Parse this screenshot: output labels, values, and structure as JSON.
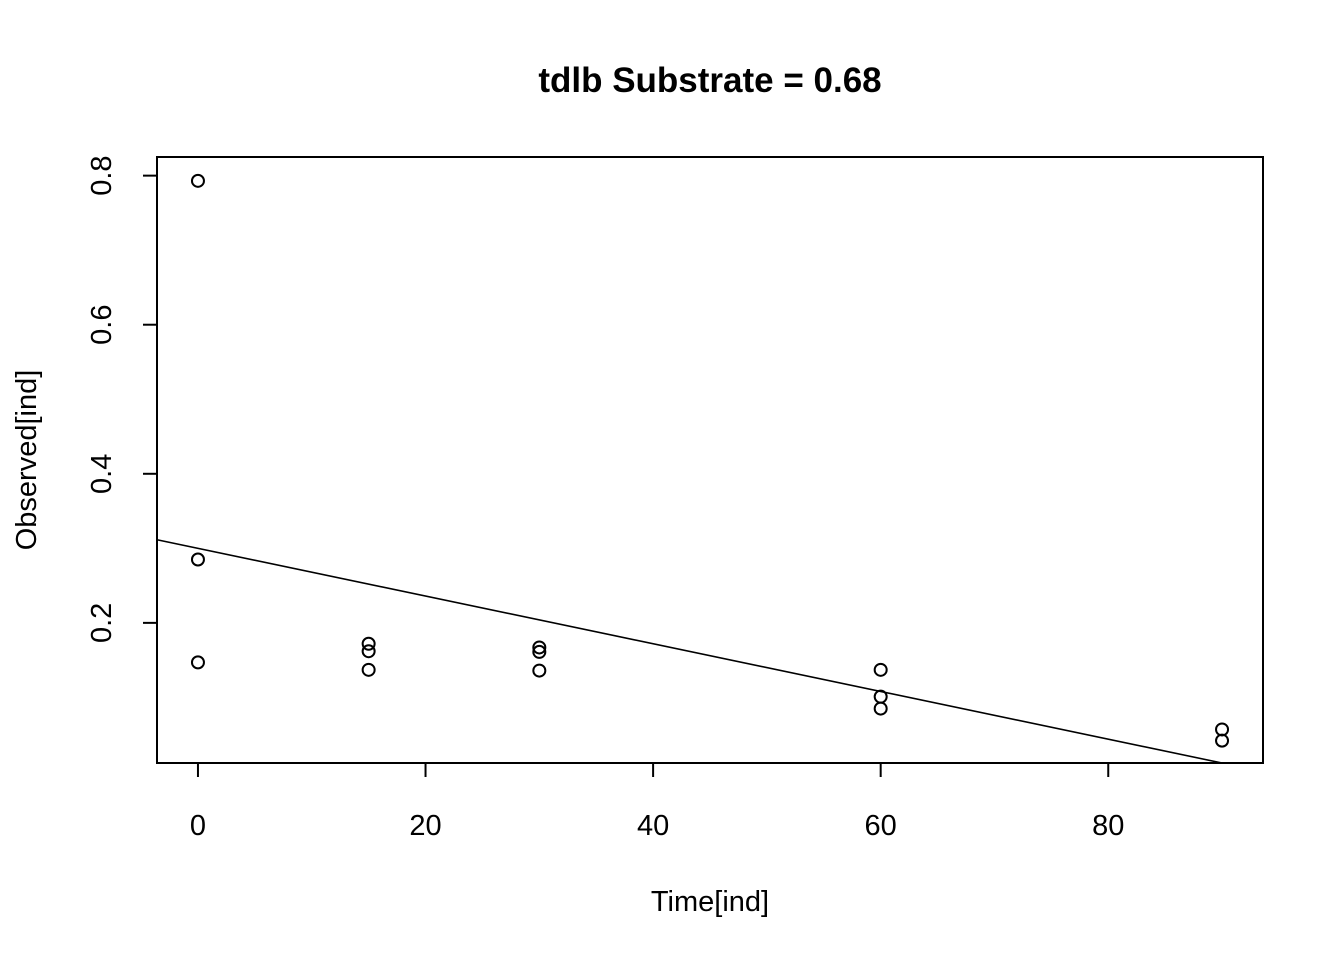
{
  "chart_data": {
    "type": "scatter",
    "title": "tdlb Substrate = 0.68",
    "xlabel": "Time[ind]",
    "ylabel": "Observed[ind]",
    "xlim": [
      -3.6,
      93.6
    ],
    "ylim": [
      0.012,
      0.825
    ],
    "x_ticks": [
      0,
      20,
      40,
      60,
      80
    ],
    "y_ticks": [
      0.2,
      0.4,
      0.6,
      0.8
    ],
    "x_tick_labels": [
      "0",
      "20",
      "40",
      "60",
      "80"
    ],
    "y_tick_labels": [
      "0.2",
      "0.4",
      "0.6",
      "0.8"
    ],
    "points": [
      {
        "x": 0,
        "y": 0.793
      },
      {
        "x": 0,
        "y": 0.285
      },
      {
        "x": 0,
        "y": 0.147
      },
      {
        "x": 15,
        "y": 0.172
      },
      {
        "x": 15,
        "y": 0.162
      },
      {
        "x": 15,
        "y": 0.137
      },
      {
        "x": 30,
        "y": 0.167
      },
      {
        "x": 30,
        "y": 0.161
      },
      {
        "x": 30,
        "y": 0.136
      },
      {
        "x": 60,
        "y": 0.137
      },
      {
        "x": 60,
        "y": 0.101
      },
      {
        "x": 60,
        "y": 0.085
      },
      {
        "x": 90,
        "y": 0.057
      },
      {
        "x": 90,
        "y": 0.042
      }
    ],
    "fit_line": {
      "intercept": 0.3,
      "slope": -0.0032
    },
    "grid": false,
    "legend": "none"
  }
}
